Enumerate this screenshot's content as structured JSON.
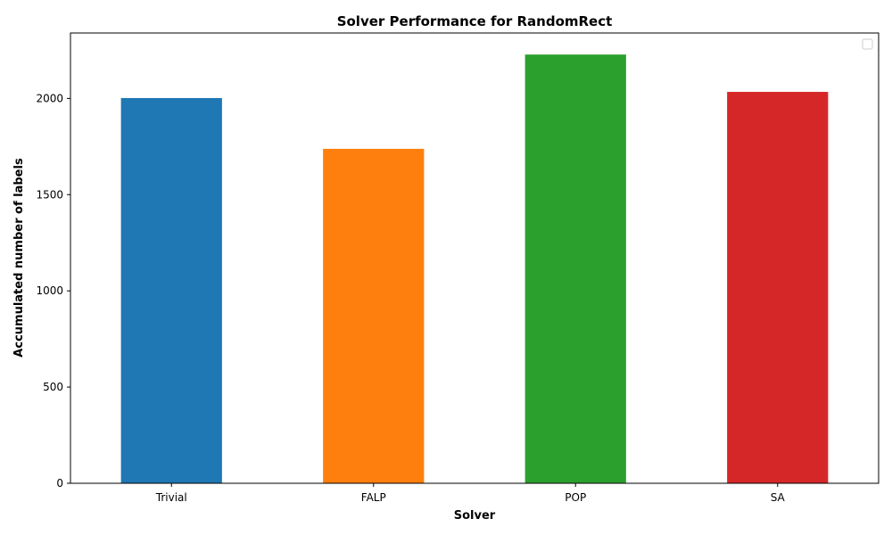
{
  "chart_data": {
    "type": "bar",
    "title": "Solver Performance for RandomRect",
    "xlabel": "Solver",
    "ylabel": "Accumulated number of labels",
    "categories": [
      "Trivial",
      "FALP",
      "POP",
      "SA"
    ],
    "values": [
      2002,
      1738,
      2228,
      2034
    ],
    "colors": [
      "#1f77b4",
      "#ff7f0e",
      "#2ca02c",
      "#d62728"
    ],
    "ylim": [
      0,
      2340
    ],
    "yticks": [
      0,
      500,
      1000,
      1500,
      2000
    ],
    "grid": false,
    "legend": {
      "position": "top-right",
      "entries": []
    }
  }
}
